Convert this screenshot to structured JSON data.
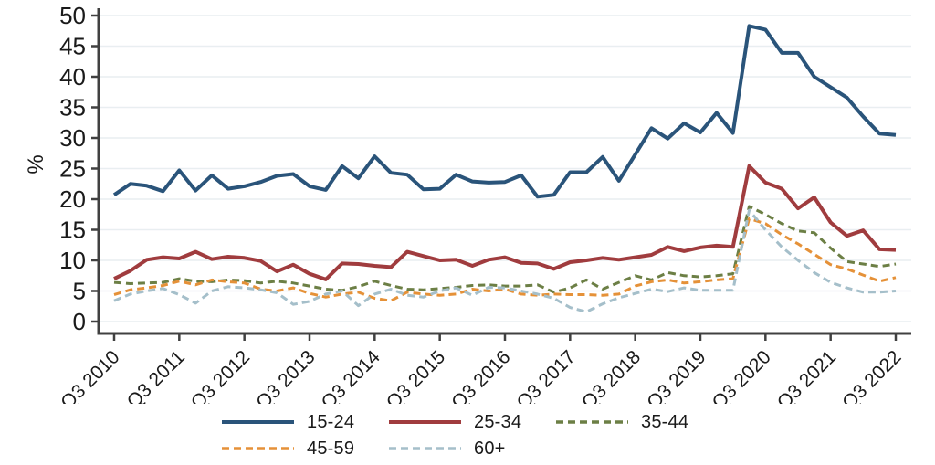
{
  "chart_data": {
    "type": "line",
    "title": "",
    "xlabel": "",
    "ylabel": "%",
    "ylim": [
      0,
      50
    ],
    "y_ticks": [
      0,
      5,
      10,
      15,
      20,
      25,
      30,
      35,
      40,
      45,
      50
    ],
    "grid": "horizontal-only",
    "x_tick_labels": [
      "Q3 2010",
      "Q3 2011",
      "Q3 2012",
      "Q3 2013",
      "Q3 2014",
      "Q3 2015",
      "Q3 2016",
      "Q3 2017",
      "Q3 2018",
      "Q3 2019",
      "Q3 2020",
      "Q3 2021",
      "Q3 2022"
    ],
    "points_per_tick": 4,
    "n_points": 49,
    "series": [
      {
        "name": "15-24",
        "color": "#2a547a",
        "dash": "solid",
        "width": 4,
        "values": [
          20.7,
          22.5,
          22.2,
          21.3,
          24.7,
          21.4,
          23.9,
          21.7,
          22.1,
          22.8,
          23.8,
          24.1,
          22.1,
          21.5,
          25.4,
          23.4,
          27.0,
          24.3,
          24.0,
          21.6,
          21.7,
          24.0,
          22.9,
          22.7,
          22.8,
          23.9,
          20.4,
          20.7,
          24.4,
          24.4,
          26.9,
          23.0,
          27.3,
          31.6,
          29.9,
          32.4,
          30.9,
          34.1,
          30.8,
          48.3,
          47.7,
          43.9,
          43.9,
          40.0,
          38.3,
          36.6,
          33.5,
          30.7,
          30.5
        ]
      },
      {
        "name": "25-34",
        "color": "#a03c3e",
        "dash": "solid",
        "width": 4,
        "values": [
          7.0,
          8.3,
          10.1,
          10.5,
          10.3,
          11.4,
          10.2,
          10.6,
          10.4,
          9.9,
          8.2,
          9.3,
          7.8,
          6.9,
          9.5,
          9.4,
          9.1,
          8.9,
          11.4,
          10.7,
          10.0,
          10.1,
          9.1,
          10.1,
          10.5,
          9.6,
          9.5,
          8.6,
          9.7,
          10.0,
          10.4,
          10.1,
          10.5,
          10.9,
          12.2,
          11.5,
          12.1,
          12.4,
          12.2,
          25.4,
          22.7,
          21.7,
          18.5,
          20.3,
          16.2,
          14.0,
          14.9,
          11.8,
          11.7
        ]
      },
      {
        "name": "35-44",
        "color": "#6c7f45",
        "dash": "dashed",
        "width": 3,
        "values": [
          6.4,
          6.2,
          6.3,
          6.4,
          7.0,
          6.6,
          6.5,
          6.8,
          6.7,
          6.3,
          6.6,
          6.3,
          5.8,
          5.3,
          5.1,
          5.7,
          6.6,
          5.9,
          5.3,
          5.2,
          5.4,
          5.6,
          5.9,
          6.0,
          5.8,
          5.8,
          6.0,
          4.8,
          5.5,
          6.8,
          5.3,
          6.4,
          7.5,
          6.8,
          8.0,
          7.5,
          7.3,
          7.5,
          7.8,
          18.8,
          17.5,
          16.0,
          14.8,
          14.5,
          12.0,
          9.8,
          9.4,
          9.0,
          9.4
        ]
      },
      {
        "name": "45-59",
        "color": "#e59138",
        "dash": "dashed",
        "width": 3,
        "values": [
          4.4,
          5.2,
          5.5,
          5.9,
          6.6,
          6.0,
          6.8,
          6.5,
          6.3,
          5.3,
          5.0,
          5.5,
          4.6,
          4.0,
          4.5,
          4.8,
          3.8,
          3.4,
          4.8,
          4.5,
          4.3,
          4.5,
          5.3,
          5.0,
          5.3,
          4.5,
          4.3,
          4.5,
          4.4,
          4.4,
          4.3,
          4.5,
          5.8,
          6.5,
          6.8,
          6.3,
          6.5,
          6.8,
          7.0,
          16.8,
          16.0,
          14.2,
          12.7,
          11.0,
          9.3,
          8.6,
          7.6,
          6.6,
          7.2
        ]
      },
      {
        "name": "60+",
        "color": "#a5bfca",
        "dash": "dashed",
        "width": 3,
        "values": [
          3.4,
          4.5,
          5.0,
          5.4,
          4.4,
          3.0,
          5.0,
          5.7,
          5.5,
          5.2,
          4.7,
          2.8,
          3.3,
          4.5,
          5.0,
          2.6,
          4.5,
          5.3,
          4.3,
          4.0,
          5.0,
          5.5,
          4.3,
          5.6,
          5.5,
          5.0,
          4.5,
          3.8,
          2.3,
          1.6,
          2.9,
          3.9,
          4.6,
          5.3,
          4.9,
          5.5,
          5.1,
          5.1,
          5.1,
          18.2,
          15.0,
          12.2,
          10.0,
          8.0,
          6.4,
          5.5,
          4.8,
          4.8,
          5.0
        ]
      }
    ],
    "legend": {
      "position": "bottom",
      "rows": [
        [
          "15-24",
          "25-34",
          "35-44"
        ],
        [
          "45-59",
          "60+"
        ]
      ]
    },
    "style": {
      "axis_color": "#404040",
      "grid_color": "#e9eef1",
      "tick_label_color": "#1a1a1a",
      "background": "#ffffff"
    }
  }
}
